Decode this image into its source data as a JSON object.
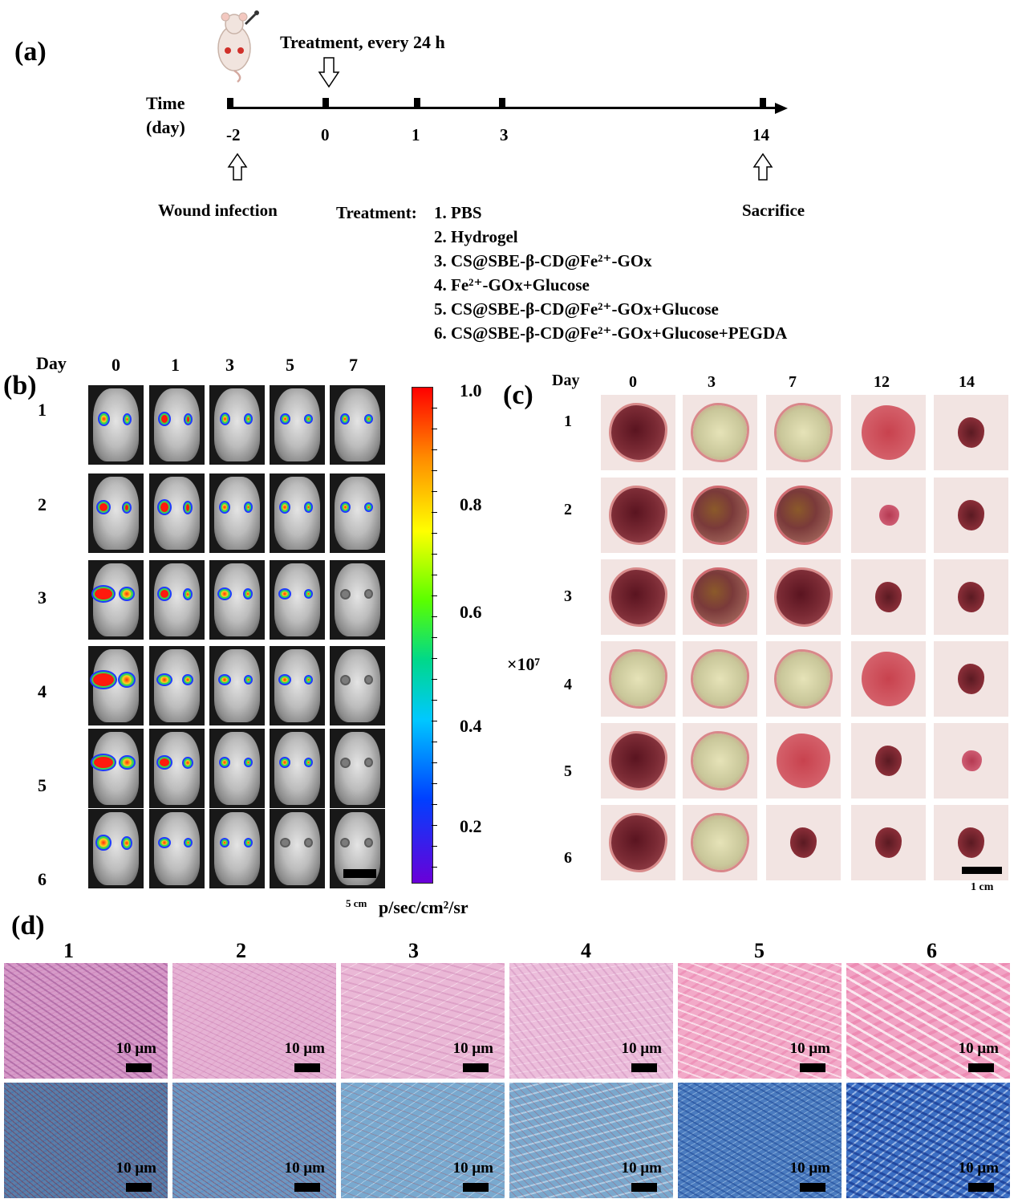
{
  "panels": {
    "a": "(a)",
    "b": "(b)",
    "c": "(c)",
    "d": "(d)"
  },
  "timeline": {
    "axis_label_line1": "Time",
    "axis_label_line2": "(day)",
    "ticks": [
      "-2",
      "0",
      "1",
      "3",
      "14"
    ],
    "top_note": "Treatment, every 24 h",
    "left_event": "Wound infection",
    "right_event": "Sacrifice",
    "treatment_title": "Treatment:",
    "treatments": [
      "1. PBS",
      "2. Hydrogel",
      "3. CS@SBE-β-CD@Fe²⁺-GOx",
      "4. Fe²⁺-GOx+Glucose",
      "5. CS@SBE-β-CD@Fe²⁺-GOx+Glucose",
      "6. CS@SBE-β-CD@Fe²⁺-GOx+Glucose+PEGDA"
    ]
  },
  "panel_b": {
    "day_label": "Day",
    "days": [
      "0",
      "1",
      "3",
      "5",
      "7"
    ],
    "groups": [
      "1",
      "2",
      "3",
      "4",
      "5",
      "6"
    ],
    "scale_bar": "5 cm",
    "colorbar_unit": "p/sec/cm²/sr",
    "colorbar_multiplier": "×10⁷",
    "colorbar_ticks": [
      "1.0",
      "0.8",
      "0.6",
      "0.4",
      "0.2"
    ]
  },
  "panel_c": {
    "day_label": "Day",
    "days": [
      "0",
      "3",
      "7",
      "12",
      "14"
    ],
    "groups": [
      "1",
      "2",
      "3",
      "4",
      "5",
      "6"
    ],
    "scale_bar": "1 cm"
  },
  "panel_d": {
    "groups": [
      "1",
      "2",
      "3",
      "4",
      "5",
      "6"
    ],
    "scale_bar": "10 μm"
  }
}
